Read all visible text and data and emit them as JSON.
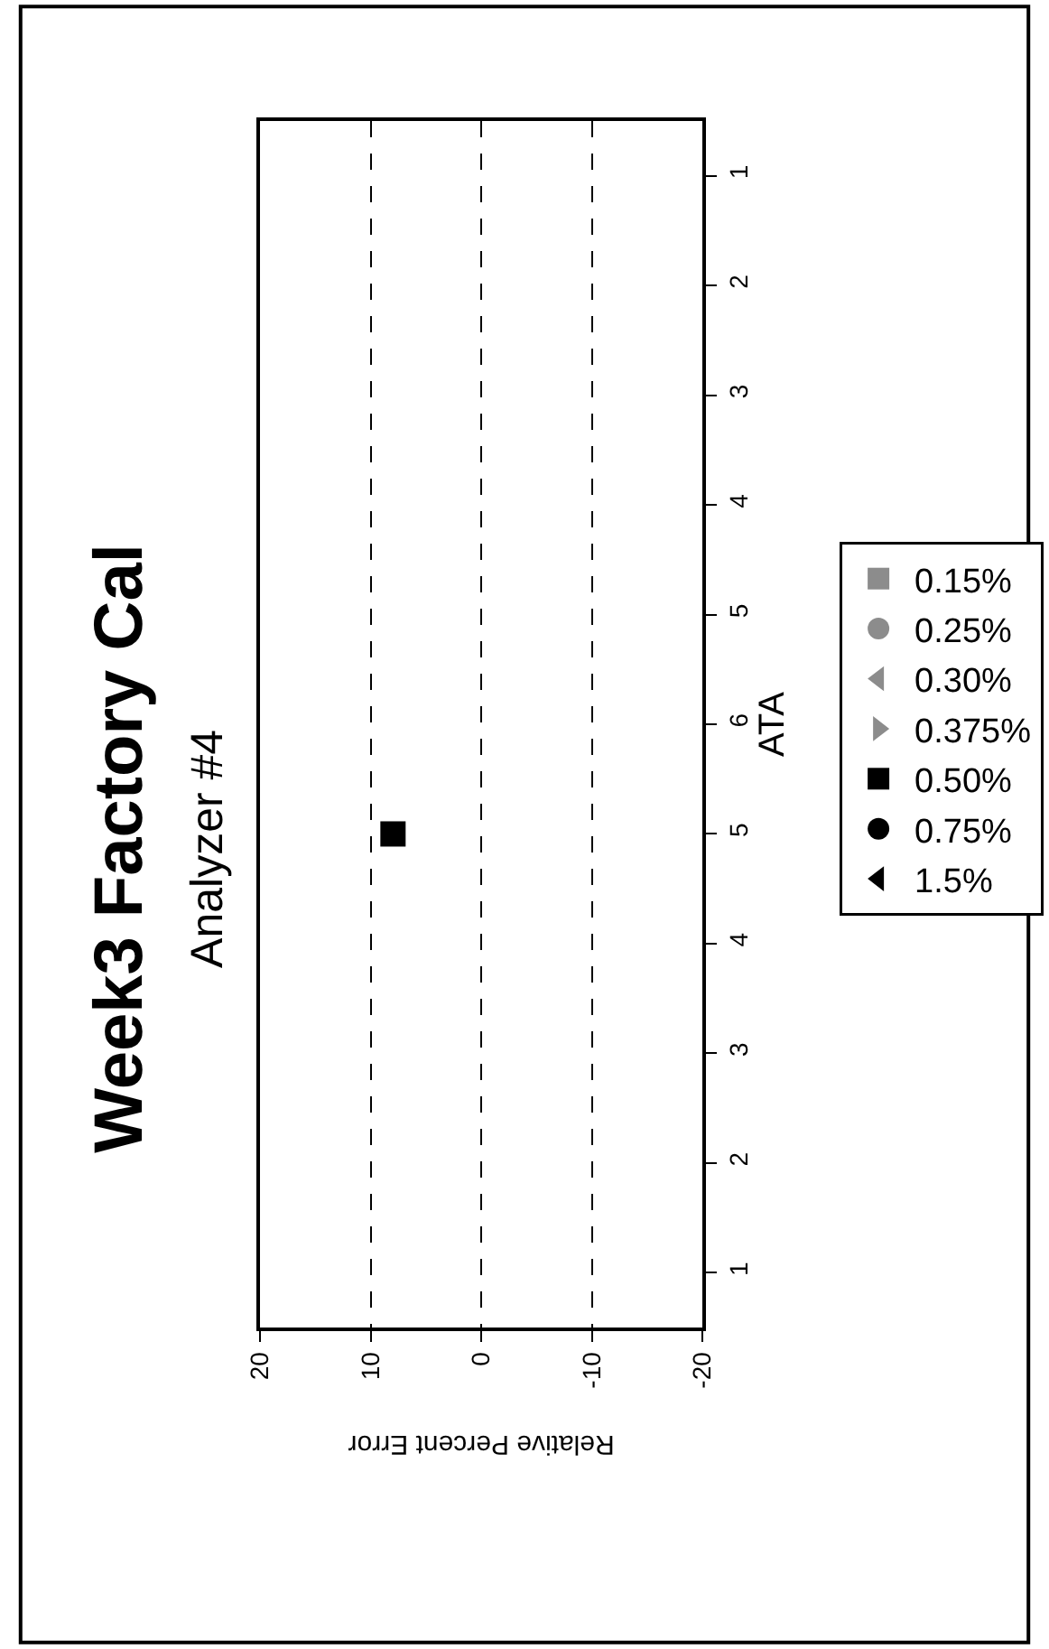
{
  "chart_data": {
    "type": "scatter",
    "orientation": "horizontal",
    "title": "Week3 Factory Cal",
    "subtitle": "Analyzer #4",
    "xlabel": "Relative Percent Error",
    "ylabel": "ATA",
    "categories": [
      "1",
      "2",
      "3",
      "4",
      "5",
      "6",
      "5",
      "4",
      "3",
      "2",
      "1"
    ],
    "xlim": [
      20,
      -20
    ],
    "xticks": [
      20,
      10,
      0,
      -10,
      -20
    ],
    "grid": "x",
    "legend": "right",
    "series": [
      {
        "name": "0.15%",
        "color": "#8c8c8c",
        "marker": "square",
        "values": [
          null,
          null,
          null,
          null,
          null,
          null,
          null,
          null,
          null,
          null,
          null
        ]
      },
      {
        "name": "0.25%",
        "color": "#8c8c8c",
        "marker": "circle",
        "values": [
          null,
          null,
          null,
          null,
          null,
          null,
          null,
          null,
          null,
          null,
          null
        ]
      },
      {
        "name": "0.30%",
        "color": "#8c8c8c",
        "marker": "triangle",
        "values": [
          null,
          null,
          null,
          null,
          null,
          null,
          null,
          null,
          null,
          null,
          null
        ]
      },
      {
        "name": "0.375%",
        "color": "#8c8c8c",
        "marker": "triangle-down",
        "values": [
          null,
          null,
          null,
          null,
          null,
          null,
          null,
          null,
          null,
          null,
          null
        ]
      },
      {
        "name": "0.50%",
        "color": "#000000",
        "marker": "square",
        "values": [
          null,
          null,
          null,
          null,
          null,
          null,
          8,
          null,
          null,
          null,
          null
        ]
      },
      {
        "name": "0.75%",
        "color": "#000000",
        "marker": "circle",
        "values": [
          null,
          null,
          null,
          null,
          null,
          null,
          null,
          null,
          null,
          null,
          null
        ]
      },
      {
        "name": "1.5%",
        "color": "#000000",
        "marker": "triangle",
        "values": [
          null,
          null,
          null,
          null,
          null,
          null,
          null,
          null,
          null,
          null,
          null
        ]
      }
    ]
  }
}
